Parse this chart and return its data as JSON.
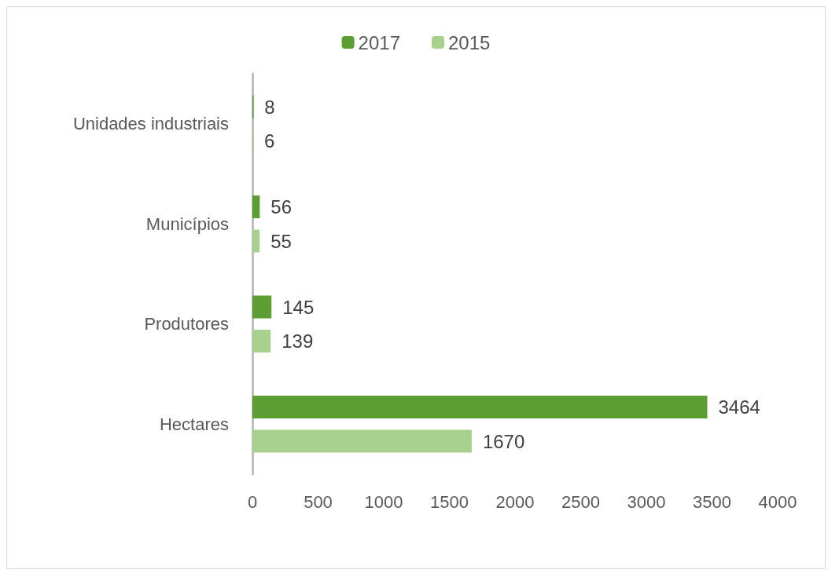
{
  "chart_data": {
    "type": "bar",
    "orientation": "horizontal",
    "categories": [
      "Unidades industriais",
      "Municípios",
      "Produtores",
      "Hectares"
    ],
    "series": [
      {
        "name": "2017",
        "color": "#5c9e31",
        "values": [
          8,
          56,
          145,
          3464
        ]
      },
      {
        "name": "2015",
        "color": "#a9d18e",
        "values": [
          6,
          55,
          139,
          1670
        ]
      }
    ],
    "xlim": [
      0,
      4000
    ],
    "xticks": [
      0,
      500,
      1000,
      1500,
      2000,
      2500,
      3000,
      3500,
      4000
    ],
    "grid": false,
    "legend": "top",
    "data_labels": true
  }
}
